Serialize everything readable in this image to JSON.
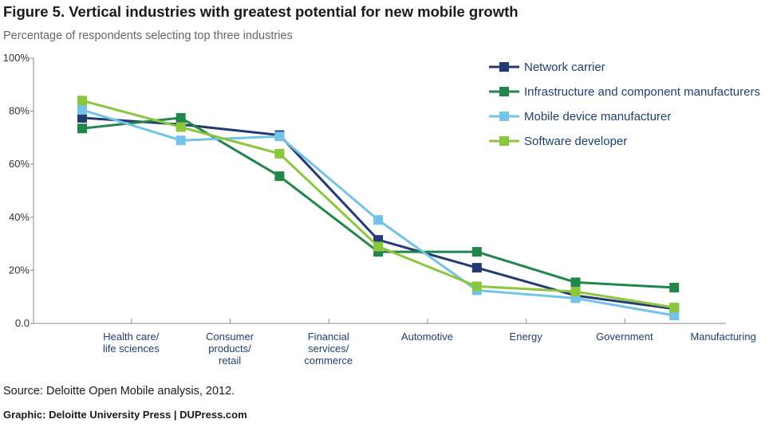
{
  "header": {
    "title": "Figure 5. Vertical industries with greatest potential for new mobile growth",
    "subtitle": "Percentage of respondents selecting top three industries"
  },
  "footer": {
    "source": "Source: Deloitte Open Mobile analysis, 2012.",
    "credit": "Graphic: Deloitte University Press  |  DUPress.com"
  },
  "chart_data": {
    "type": "line",
    "title": "Figure 5. Vertical industries with greatest potential for new mobile growth",
    "subtitle": "Percentage of respondents selecting top three industries",
    "categories": [
      [
        "Health care/",
        "life sciences"
      ],
      [
        "Consumer",
        "products/",
        "retail"
      ],
      [
        "Financial",
        "services/",
        "commerce"
      ],
      [
        "Automotive"
      ],
      [
        "Energy"
      ],
      [
        "Government"
      ],
      [
        "Manufacturing"
      ]
    ],
    "yticks": [
      "0.0",
      "20%",
      "40%",
      "60%",
      "80%",
      "100%"
    ],
    "ylim": [
      0,
      100
    ],
    "grid": false,
    "legend_position": "top-right",
    "series": [
      {
        "name": "Network carrier",
        "color": "#243a73",
        "values": [
          77.5,
          75,
          71,
          31.5,
          21,
          10.5,
          5.5
        ]
      },
      {
        "name": "Infrastructure and component manufacturers",
        "color": "#21864a",
        "values": [
          73.5,
          77.5,
          55.5,
          27,
          27,
          15.5,
          13.5
        ]
      },
      {
        "name": "Mobile device manufacturer",
        "color": "#72c3e6",
        "values": [
          80.5,
          69,
          70.5,
          39,
          12.5,
          9.5,
          3
        ]
      },
      {
        "name": "Software developer",
        "color": "#8cc63f",
        "values": [
          84,
          74,
          64,
          29,
          14,
          12,
          6
        ]
      }
    ]
  }
}
